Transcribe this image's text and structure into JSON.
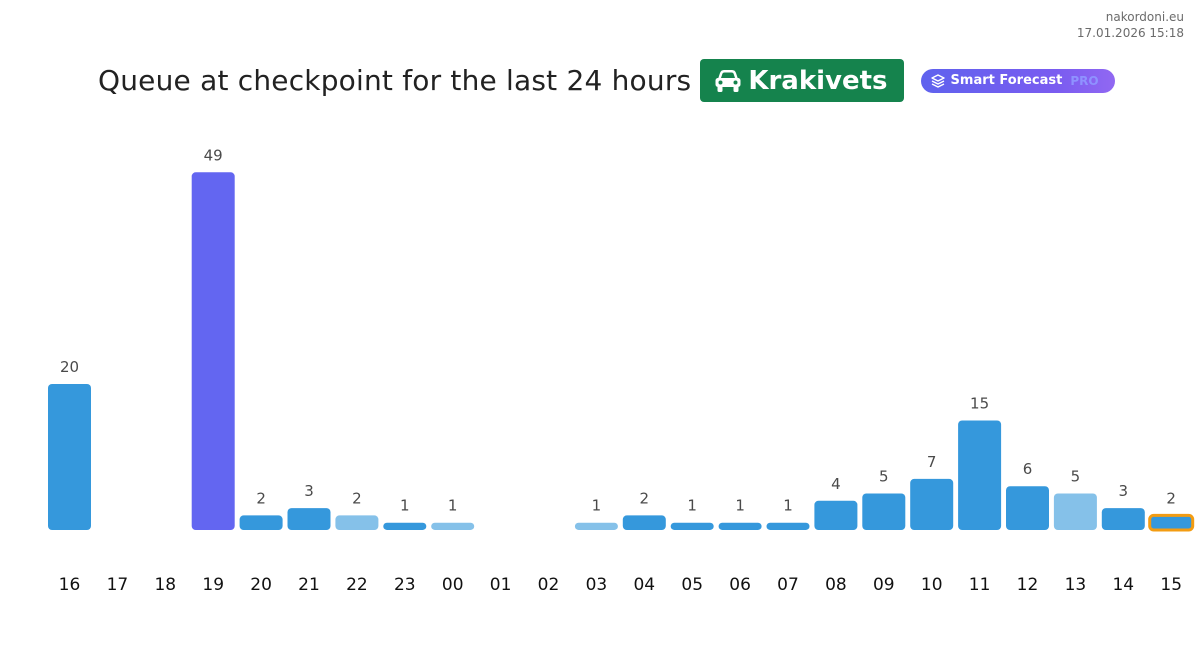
{
  "header": {
    "site": "nakordoni.eu",
    "datetime": "17.01.2026 15:18"
  },
  "title": {
    "text": "Queue at checkpoint for the last 24 hours",
    "checkpoint": "Krakivets",
    "checkpoint_icon": "car-icon",
    "checkpoint_color": "#15834d"
  },
  "forecast_button": {
    "label": "Smart Forecast",
    "suffix": "PRO",
    "icon": "layers-icon",
    "color": "#6366f1"
  },
  "chart_data": {
    "type": "bar",
    "categories": [
      "16",
      "17",
      "18",
      "19",
      "20",
      "21",
      "22",
      "23",
      "00",
      "01",
      "02",
      "03",
      "04",
      "05",
      "06",
      "07",
      "08",
      "09",
      "10",
      "11",
      "12",
      "13",
      "14",
      "15"
    ],
    "values": [
      20,
      0,
      0,
      49,
      2,
      3,
      2,
      1,
      1,
      0,
      0,
      1,
      2,
      1,
      1,
      1,
      4,
      5,
      7,
      15,
      6,
      5,
      3,
      2
    ],
    "labels": [
      "20",
      "",
      "",
      "49",
      "2",
      "3",
      "2",
      "1",
      "1",
      "",
      "",
      "1",
      "2",
      "1",
      "1",
      "1",
      "4",
      "5",
      "7",
      "15",
      "6",
      "5",
      "3",
      "2"
    ],
    "title": "Queue at checkpoint for the last 24 hours",
    "xlabel": "",
    "ylabel": "",
    "ylim": [
      0,
      49
    ],
    "grid": false,
    "colors": {
      "default": "#3598dc",
      "light": "#85c1e9",
      "peak": "#6366f1",
      "current_outline": "#f39c12"
    },
    "light_indices": [
      6,
      8,
      11,
      21
    ],
    "peak_index": 3,
    "current_index": 23
  }
}
